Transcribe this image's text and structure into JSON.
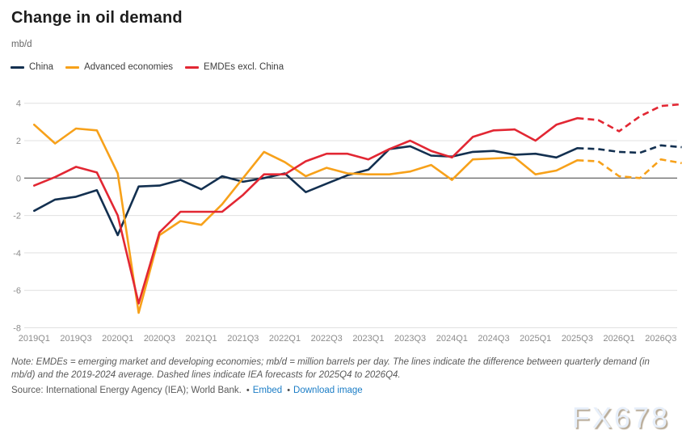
{
  "header": {
    "title": "Change in oil demand",
    "unit": "mb/d"
  },
  "legend": {
    "items": [
      {
        "label": "China",
        "color": "#133050"
      },
      {
        "label": "Advanced economies",
        "color": "#f7a11a"
      },
      {
        "label": "EMDEs excl. China",
        "color": "#e22733"
      }
    ]
  },
  "chart_data": {
    "type": "line",
    "title": "Change in oil demand",
    "ylabel": "mb/d",
    "ylim": [
      -8,
      4.6
    ],
    "yticks": [
      4,
      2,
      0,
      -2,
      -4,
      -6,
      -8
    ],
    "grid": true,
    "legend_position": "top-left",
    "x": [
      "2019Q1",
      "2019Q2",
      "2019Q3",
      "2019Q4",
      "2020Q1",
      "2020Q2",
      "2020Q3",
      "2020Q4",
      "2021Q1",
      "2021Q2",
      "2021Q3",
      "2021Q4",
      "2022Q1",
      "2022Q2",
      "2022Q3",
      "2022Q4",
      "2023Q1",
      "2023Q2",
      "2023Q3",
      "2023Q4",
      "2024Q1",
      "2024Q2",
      "2024Q3",
      "2024Q4",
      "2025Q1",
      "2025Q2",
      "2025Q3",
      "2025Q4",
      "2026Q1",
      "2026Q2",
      "2026Q3",
      "2026Q4"
    ],
    "xtick_every": 2,
    "forecast_start": "2025Q3",
    "forecast_start_index": 26,
    "forecast_style": "dashed",
    "series": [
      {
        "name": "China",
        "color": "#133050",
        "values": [
          -1.75,
          -1.15,
          -1.0,
          -0.65,
          -3.05,
          -0.45,
          -0.4,
          -0.1,
          -0.6,
          0.1,
          -0.2,
          0.0,
          0.25,
          -0.75,
          -0.3,
          0.15,
          0.45,
          1.55,
          1.7,
          1.2,
          1.15,
          1.4,
          1.45,
          1.25,
          1.3,
          1.1,
          1.6,
          1.55,
          1.4,
          1.35,
          1.75,
          1.65
        ]
      },
      {
        "name": "Advanced economies",
        "color": "#f7a11a",
        "values": [
          2.85,
          1.85,
          2.65,
          2.55,
          0.25,
          -7.2,
          -3.05,
          -2.3,
          -2.5,
          -1.4,
          0.0,
          1.4,
          0.85,
          0.1,
          0.55,
          0.25,
          0.2,
          0.2,
          0.35,
          0.7,
          -0.1,
          1.0,
          1.05,
          1.1,
          0.2,
          0.4,
          0.95,
          0.9,
          0.1,
          0.0,
          1.0,
          0.8
        ]
      },
      {
        "name": "EMDEs excl. China",
        "color": "#e22733",
        "values": [
          -0.4,
          0.05,
          0.6,
          0.3,
          -2.0,
          -6.7,
          -2.9,
          -1.8,
          -1.8,
          -1.8,
          -0.9,
          0.2,
          0.2,
          0.9,
          1.3,
          1.3,
          1.0,
          1.55,
          2.0,
          1.45,
          1.1,
          2.2,
          2.55,
          2.6,
          2.0,
          2.85,
          3.2,
          3.1,
          2.5,
          3.3,
          3.85,
          3.95
        ]
      }
    ]
  },
  "footer": {
    "note": "Note: EMDEs = emerging market and developing economies; mb/d = million barrels per day. The lines indicate the difference between quarterly demand (in mb/d) and the 2019-2024 average. Dashed lines indicate IEA forecasts for 2025Q4 to 2026Q4.",
    "source": "Source: International Energy Agency (IEA); World Bank.",
    "separator": "•",
    "embed_label": "Embed",
    "download_label": "Download image",
    "link_color": "#1b7dc6"
  },
  "watermark": {
    "text": "FX678"
  }
}
